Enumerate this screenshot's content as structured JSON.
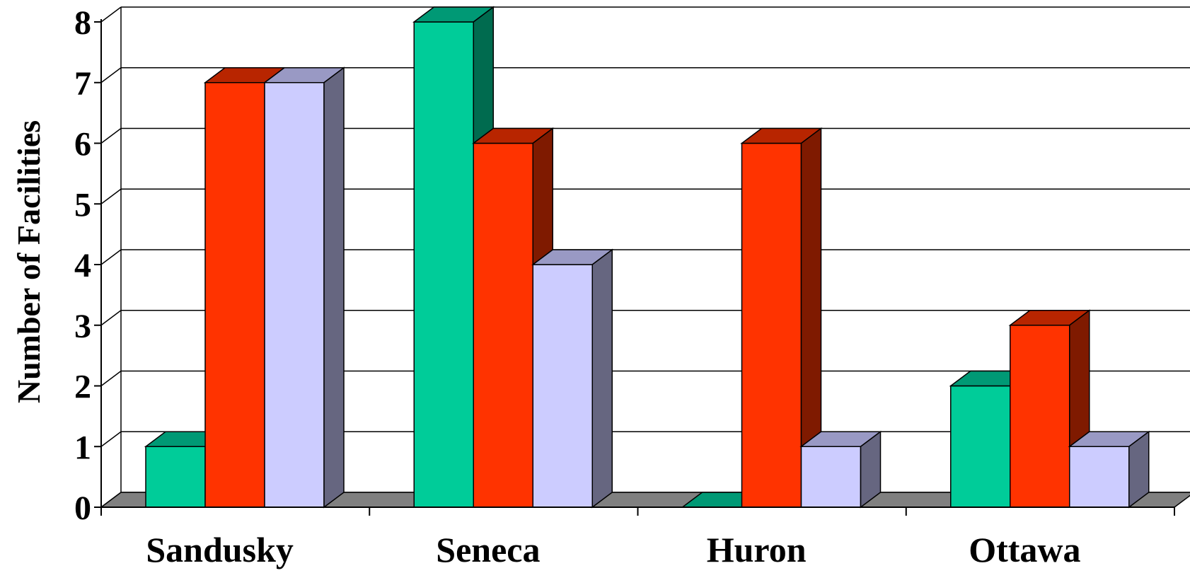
{
  "chart_data": {
    "type": "bar",
    "style": "3d-clustered-column",
    "title": "",
    "xlabel": "",
    "ylabel": "Number of Facilities",
    "categories": [
      "Sandusky",
      "Seneca",
      "Huron",
      "Ottawa"
    ],
    "series": [
      {
        "values": [
          1,
          8,
          0,
          2
        ],
        "color": "#00CC99",
        "side_color": "#006B4F",
        "top_color": "#009975"
      },
      {
        "values": [
          7,
          6,
          6,
          3
        ],
        "color": "#FF3300",
        "side_color": "#7F1A00",
        "top_color": "#B82500"
      },
      {
        "values": [
          7,
          4,
          1,
          1
        ],
        "color": "#CCCCFF",
        "side_color": "#666680",
        "top_color": "#9999C4"
      }
    ],
    "ylim": [
      0,
      8
    ],
    "yticks": [
      "0",
      "1",
      "2",
      "3",
      "4",
      "5",
      "6",
      "7",
      "8"
    ],
    "grid": true,
    "floor_color": "#808080",
    "legend": "none"
  }
}
